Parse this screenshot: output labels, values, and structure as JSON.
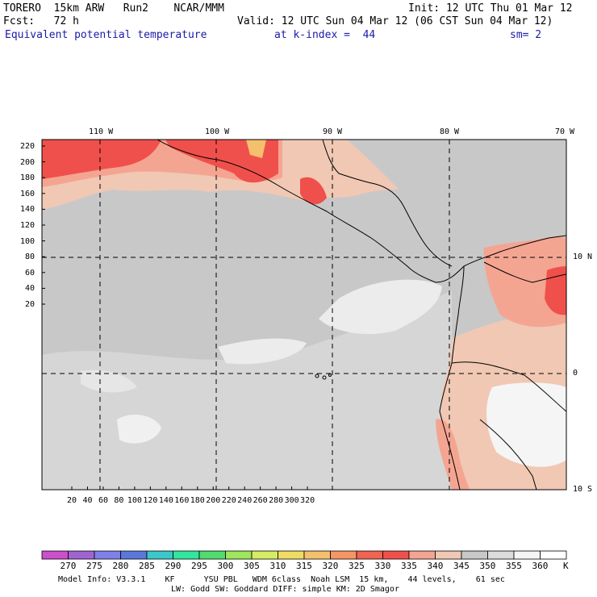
{
  "header": {
    "model": "TORERO  15km ARW   Run2    NCAR/MMM",
    "init": "Init: 12 UTC Thu 01 Mar 12",
    "fcst": "Fcst:   72 h",
    "valid": "Valid: 12 UTC Sun 04 Mar 12 (06 CST Sun 04 Mar 12)",
    "field": "Equivalent potential temperature",
    "level": "at k-index =  44",
    "smooth": "sm= 2"
  },
  "map": {
    "lon_labels": [
      "110 W",
      "100 W",
      "90 W",
      "80 W",
      "70 W"
    ],
    "lat_labels": [
      "10 N",
      "0",
      "10 S"
    ],
    "y_ticks": [
      "220",
      "200",
      "180",
      "160",
      "140",
      "120",
      "100",
      "80",
      "60",
      "40",
      "20"
    ],
    "x_ticks": [
      "20",
      "40",
      "60",
      "80",
      "100",
      "120",
      "140",
      "160",
      "180",
      "200",
      "220",
      "240",
      "260",
      "280",
      "300",
      "320"
    ]
  },
  "colorbar": {
    "labels": [
      "270",
      "275",
      "280",
      "285",
      "290",
      "295",
      "300",
      "305",
      "310",
      "315",
      "320",
      "325",
      "330",
      "335",
      "340",
      "345",
      "350",
      "355",
      "360"
    ],
    "unit": "K",
    "colors": [
      "#cc4fcc",
      "#a064d2",
      "#8080ea",
      "#5a78dc",
      "#3cc8c8",
      "#32e6a0",
      "#50dc6e",
      "#9ee65a",
      "#d6ec64",
      "#f0dc64",
      "#f5c06e",
      "#f59664",
      "#f06450",
      "#f0504b",
      "#f4a592",
      "#f0c8b4",
      "#c8c8c8",
      "#dcdcdc",
      "#f5f5f5",
      "#ffffff"
    ]
  },
  "footer": {
    "line1": "Model Info: V3.3.1    KF      YSU PBL   WDM 6class  Noah LSM  15 km,    44 levels,    61 sec",
    "line2": "LW: Godd SW: Goddard DIFF: simple KM: 2D Smagor"
  }
}
